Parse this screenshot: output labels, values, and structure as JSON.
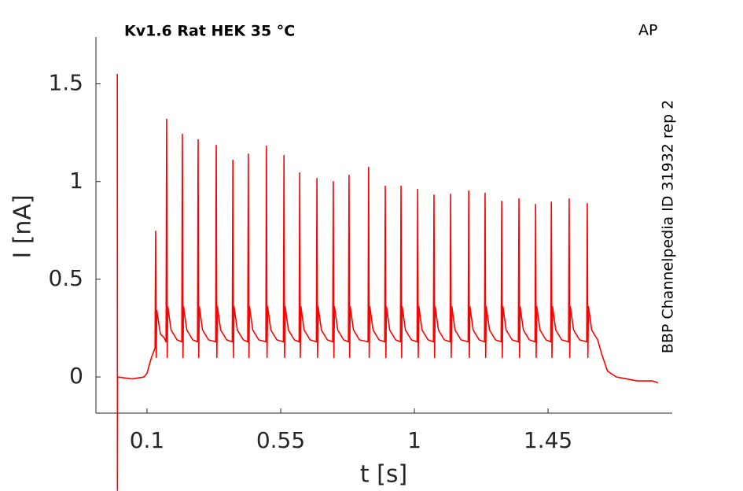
{
  "chart_data": {
    "type": "line",
    "title": "Kv1.6  Rat  HEK  35 °C",
    "annotation": "AP",
    "side_label": "BBP Channelpedia ID 31932 rep 2",
    "xlabel": "t [s]",
    "ylabel": "I [nA]",
    "xlim": [
      -0.072,
      1.868
    ],
    "ylim": [
      -0.185,
      1.74
    ],
    "xticks": [
      0.1,
      0.55,
      1,
      1.45
    ],
    "yticks": [
      0,
      0.5,
      1,
      1.5
    ],
    "grid": false,
    "color": "#ff0000",
    "x": [
      0,
      0.0005,
      0.001,
      0.05,
      0.09,
      0.1,
      0.115,
      0.125,
      0.127,
      0.129,
      0.131,
      0.133,
      0.145,
      0.158,
      0.164,
      0.166,
      0.168,
      0.17,
      0.181,
      0.201,
      0.217,
      0.219,
      0.221,
      0.223,
      0.234,
      0.254,
      0.27,
      0.272,
      0.274,
      0.276,
      0.287,
      0.307,
      0.331,
      0.333,
      0.335,
      0.337,
      0.348,
      0.368,
      0.387,
      0.389,
      0.391,
      0.393,
      0.404,
      0.424,
      0.439,
      0.441,
      0.443,
      0.445,
      0.456,
      0.476,
      0.5,
      0.502,
      0.504,
      0.506,
      0.517,
      0.537,
      0.559,
      0.561,
      0.563,
      0.565,
      0.576,
      0.596,
      0.612,
      0.614,
      0.616,
      0.618,
      0.629,
      0.649,
      0.67,
      0.672,
      0.674,
      0.676,
      0.687,
      0.707,
      0.725,
      0.727,
      0.729,
      0.731,
      0.742,
      0.762,
      0.778,
      0.78,
      0.782,
      0.784,
      0.795,
      0.815,
      0.844,
      0.846,
      0.848,
      0.85,
      0.861,
      0.881,
      0.9,
      0.902,
      0.904,
      0.906,
      0.917,
      0.937,
      0.953,
      0.955,
      0.957,
      0.959,
      0.97,
      0.99,
      1.009,
      1.011,
      1.013,
      1.015,
      1.026,
      1.046,
      1.064,
      1.066,
      1.068,
      1.07,
      1.081,
      1.101,
      1.12,
      1.122,
      1.124,
      1.126,
      1.137,
      1.157,
      1.181,
      1.183,
      1.185,
      1.187,
      1.198,
      1.218,
      1.236,
      1.238,
      1.24,
      1.242,
      1.253,
      1.273,
      1.292,
      1.294,
      1.296,
      1.298,
      1.309,
      1.329,
      1.35,
      1.352,
      1.354,
      1.356,
      1.367,
      1.387,
      1.406,
      1.408,
      1.41,
      1.412,
      1.423,
      1.443,
      1.459,
      1.461,
      1.463,
      1.465,
      1.476,
      1.496,
      1.519,
      1.521,
      1.523,
      1.525,
      1.536,
      1.556,
      1.58,
      1.582,
      1.584,
      1.586,
      1.597,
      1.617,
      1.63,
      1.65,
      1.68,
      1.75,
      1.8,
      1.82
    ],
    "values": [
      1.55,
      -0.58,
      0,
      -0.01,
      0,
      0.02,
      0.1,
      0.14,
      0.15,
      0.746,
      0.1,
      0.34,
      0.22,
      0.2,
      0.18,
      1.319,
      0.1,
      0.36,
      0.24,
      0.19,
      0.18,
      1.242,
      0.1,
      0.36,
      0.24,
      0.19,
      0.18,
      1.214,
      0.1,
      0.36,
      0.24,
      0.19,
      0.18,
      1.185,
      0.1,
      0.36,
      0.24,
      0.19,
      0.18,
      1.109,
      0.1,
      0.36,
      0.24,
      0.19,
      0.18,
      1.141,
      0.1,
      0.36,
      0.24,
      0.19,
      0.18,
      1.181,
      0.1,
      0.36,
      0.24,
      0.19,
      0.18,
      1.133,
      0.1,
      0.36,
      0.24,
      0.19,
      0.18,
      1.044,
      0.1,
      0.36,
      0.24,
      0.19,
      0.18,
      1.016,
      0.1,
      0.36,
      0.24,
      0.19,
      0.18,
      1.0,
      0.1,
      0.36,
      0.24,
      0.19,
      0.18,
      1.032,
      0.1,
      0.36,
      0.24,
      0.19,
      0.18,
      1.073,
      0.1,
      0.36,
      0.24,
      0.19,
      0.18,
      0.976,
      0.1,
      0.36,
      0.24,
      0.19,
      0.18,
      0.976,
      0.1,
      0.36,
      0.24,
      0.19,
      0.18,
      0.96,
      0.1,
      0.36,
      0.24,
      0.19,
      0.18,
      0.931,
      0.1,
      0.36,
      0.24,
      0.19,
      0.18,
      0.935,
      0.1,
      0.36,
      0.24,
      0.19,
      0.18,
      0.952,
      0.1,
      0.36,
      0.24,
      0.19,
      0.18,
      0.94,
      0.1,
      0.36,
      0.24,
      0.19,
      0.18,
      0.899,
      0.1,
      0.36,
      0.24,
      0.19,
      0.18,
      0.911,
      0.1,
      0.36,
      0.24,
      0.19,
      0.18,
      0.883,
      0.1,
      0.36,
      0.24,
      0.19,
      0.18,
      0.895,
      0.1,
      0.36,
      0.24,
      0.19,
      0.18,
      0.911,
      0.1,
      0.36,
      0.24,
      0.19,
      0.18,
      0.887,
      0.1,
      0.36,
      0.24,
      0.19,
      0.12,
      0.03,
      0,
      -0.02,
      -0.02,
      -0.03
    ]
  }
}
